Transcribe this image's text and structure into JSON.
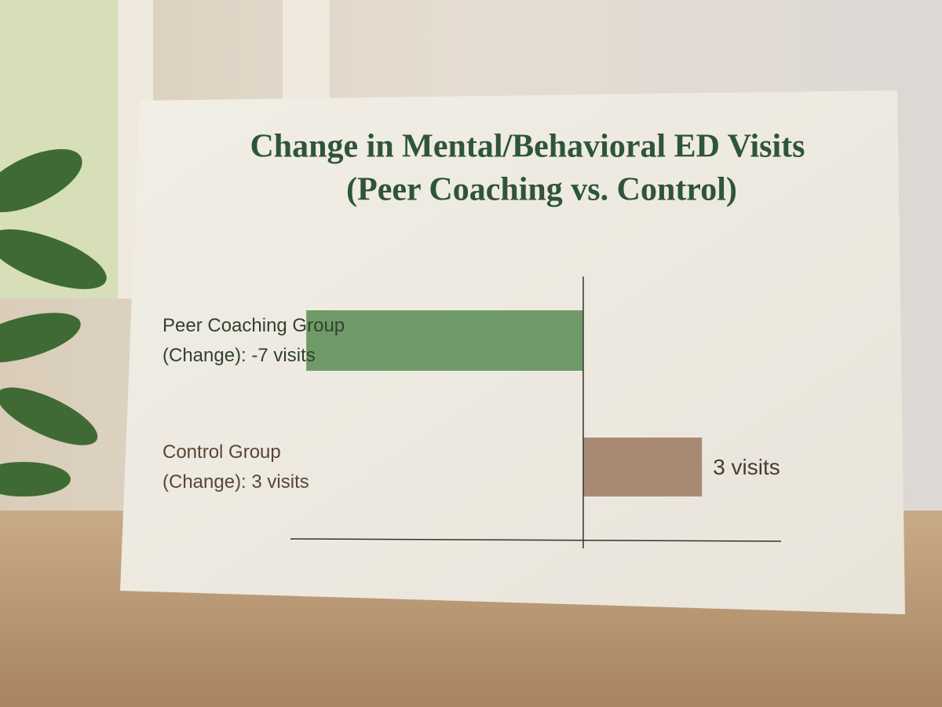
{
  "chart_data": {
    "type": "hbar",
    "title": [
      "Change in Mental/Behavioral ED Visits",
      "(Peer Coaching vs. Control)"
    ],
    "categories": [
      [
        "Peer Coaching Group",
        "(Change): -7 visits"
      ],
      [
        "Control Group",
        "(Change): 3 visits"
      ]
    ],
    "values": [
      -7,
      3
    ],
    "value_labels": [
      null,
      "3 visits"
    ],
    "colors": [
      "#6f9a68",
      "#a88a74"
    ],
    "xlim": [
      -7.4,
      5.0
    ]
  }
}
